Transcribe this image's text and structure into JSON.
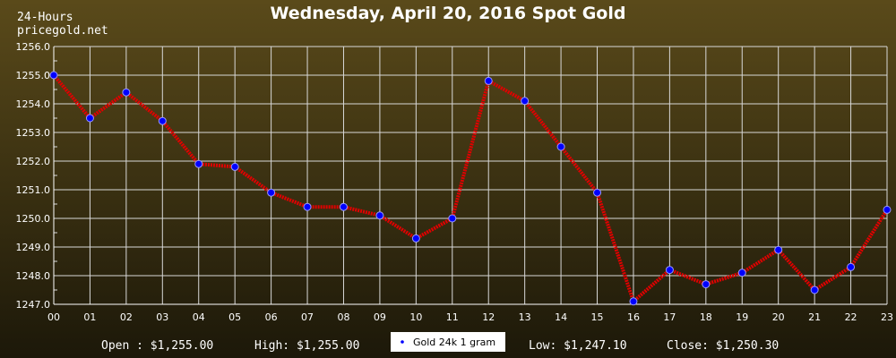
{
  "title": "Wednesday, April 20, 2016 Spot Gold",
  "brand": {
    "line1": "24-Hours",
    "line2": "pricegold.net"
  },
  "stats": {
    "open": "Open : $1,255.00",
    "high": "High: $1,255.00",
    "low": "Low: $1,247.10",
    "close": "Close: $1,250.30"
  },
  "legend": {
    "label": "Gold 24k 1 gram"
  },
  "colors": {
    "line": "#e00000",
    "marker": "#0000ff",
    "grid": "#d8d8d8",
    "bg_top": "#5a4a1a",
    "bg_bottom": "#1c1809"
  },
  "chart_data": {
    "type": "line",
    "title": "Wednesday, April 20, 2016 Spot Gold",
    "xlabel": "",
    "ylabel": "",
    "categories": [
      "00",
      "01",
      "02",
      "03",
      "04",
      "05",
      "06",
      "07",
      "08",
      "09",
      "10",
      "11",
      "12",
      "13",
      "14",
      "15",
      "16",
      "17",
      "18",
      "19",
      "20",
      "21",
      "22",
      "23"
    ],
    "ylim": [
      1247.0,
      1256.0
    ],
    "yticks": [
      "1247.0",
      "1248.0",
      "1249.0",
      "1250.0",
      "1251.0",
      "1252.0",
      "1253.0",
      "1254.0",
      "1255.0",
      "1256.0"
    ],
    "grid": true,
    "legend_position": "bottom-center",
    "series": [
      {
        "name": "Gold 24k 1 gram",
        "values": [
          1255.0,
          1253.5,
          1254.4,
          1253.4,
          1251.9,
          1251.8,
          1250.9,
          1250.4,
          1250.4,
          1250.1,
          1249.3,
          1250.0,
          1254.8,
          1254.1,
          1252.5,
          1250.9,
          1247.1,
          1248.2,
          1247.7,
          1248.1,
          1248.9,
          1247.5,
          1248.3,
          1250.3
        ]
      }
    ]
  }
}
